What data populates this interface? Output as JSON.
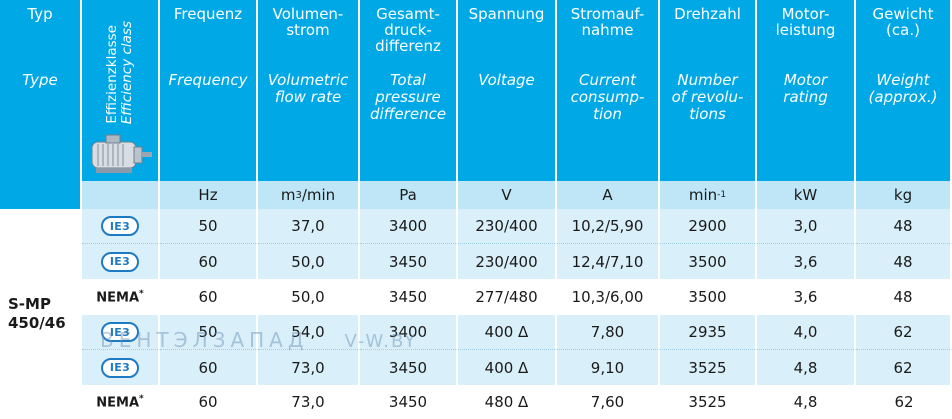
{
  "header": {
    "typ": {
      "de": "Typ",
      "en": "Type"
    },
    "efficiency": {
      "de": "Effizienzklasse",
      "en": "Efficiency class"
    },
    "columns": [
      {
        "de": "Frequenz",
        "en": "Frequency",
        "unit": "Hz"
      },
      {
        "de": "Volumen-\nstrom",
        "en": "Volumetric\nflow rate",
        "unit": "m³/min"
      },
      {
        "de": "Gesamt-\ndruck-\ndifferenz",
        "en": "Total\npressure\ndifference",
        "unit": "Pa"
      },
      {
        "de": "Spannung",
        "en": "Voltage",
        "unit": "V"
      },
      {
        "de": "Stromauf-\nnahme",
        "en": "Current\nconsump-\ntion",
        "unit": "A"
      },
      {
        "de": "Drehzahl",
        "en": "Number\nof revolu-\ntions",
        "unit": "min-1"
      },
      {
        "de": "Motor-\nleistung",
        "en": "Motor\nrating",
        "unit": "kW"
      },
      {
        "de": "Gewicht\n(ca.)",
        "en": "Weight\n(approx.)",
        "unit": "kg"
      }
    ]
  },
  "model": "S-MP\n450/46",
  "rows": [
    {
      "cls": "IE3",
      "values": [
        "50",
        "37,0",
        "3400",
        "230/400",
        "10,2/5,90",
        "2900",
        "3,0",
        "48"
      ]
    },
    {
      "cls": "IE3",
      "values": [
        "60",
        "50,0",
        "3450",
        "230/400",
        "12,4/7,10",
        "3500",
        "3,6",
        "48"
      ]
    },
    {
      "cls": "NEMA*",
      "values": [
        "60",
        "50,0",
        "3450",
        "277/480",
        "10,3/6,00",
        "3500",
        "3,6",
        "48"
      ]
    },
    {
      "cls": "IE3",
      "values": [
        "50",
        "54,0",
        "3400",
        "400 Δ",
        "7,80",
        "2935",
        "4,0",
        "62"
      ]
    },
    {
      "cls": "IE3",
      "values": [
        "60",
        "73,0",
        "3450",
        "400 Δ",
        "9,10",
        "3525",
        "4,8",
        "62"
      ]
    },
    {
      "cls": "NEMA*",
      "values": [
        "60",
        "73,0",
        "3450",
        "480 Δ",
        "7,60",
        "3525",
        "4,8",
        "62"
      ]
    }
  ],
  "watermark": {
    "text": "ВЕНТЭЛЗАПАД",
    "url": "V-W.BY"
  },
  "colors": {
    "header": "#00a9e6",
    "unit_row": "#bfe6f7",
    "shade": "#d9eff9",
    "ie3": "#1f7ac4"
  }
}
